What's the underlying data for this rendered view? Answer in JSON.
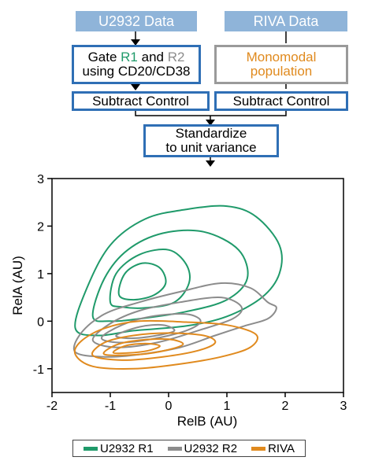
{
  "flow": {
    "u2932_source": "U2932 Data",
    "riva_source": "RIVA Data",
    "gate_prefix": "Gate ",
    "gate_r1": "R1",
    "gate_and": " and ",
    "gate_r2": "R2",
    "gate_line2": "using CD20/CD38",
    "monomodal_line1": "Monomodal",
    "monomodal_line2": "population",
    "subtract_left": "Subtract Control",
    "subtract_right": "Subtract Control",
    "standardize_line1": "Standardize",
    "standardize_line2": "to unit variance"
  },
  "colors": {
    "source_fill": "#8fb4d9",
    "box_border_blue": "#2f6fb5",
    "box_border_grey": "#9a9a9a",
    "u2932_r1": "#1f9a6a",
    "u2932_r2": "#8c8c8c",
    "riva": "#e08a1e"
  },
  "chart_data": {
    "type": "contour",
    "xlabel": "RelB (AU)",
    "ylabel": "RelA (AU)",
    "xlim": [
      -2,
      3
    ],
    "ylim": [
      -1.5,
      3
    ],
    "xticks": [
      "-2",
      "-1",
      "0",
      "1",
      "2",
      "3"
    ],
    "yticks": [
      "3",
      "2",
      "1",
      "0",
      "-1"
    ],
    "series": [
      {
        "name": "U2932 R1",
        "color": "#1f9a6a",
        "levels": [
          [
            [
              -1.6,
              -0.15
            ],
            [
              -1.4,
              0.7
            ],
            [
              -1.0,
              1.6
            ],
            [
              -0.4,
              2.15
            ],
            [
              0.3,
              2.35
            ],
            [
              1.0,
              2.42
            ],
            [
              1.5,
              2.2
            ],
            [
              1.9,
              1.6
            ],
            [
              1.9,
              1.0
            ],
            [
              1.6,
              0.5
            ],
            [
              1.0,
              0.1
            ],
            [
              0.3,
              -0.1
            ],
            [
              -0.6,
              -0.2
            ],
            [
              -1.2,
              -0.3
            ]
          ],
          [
            [
              -1.3,
              0.1
            ],
            [
              -1.1,
              0.9
            ],
            [
              -0.7,
              1.5
            ],
            [
              -0.1,
              1.85
            ],
            [
              0.6,
              1.88
            ],
            [
              1.2,
              1.5
            ],
            [
              1.35,
              0.9
            ],
            [
              1.0,
              0.45
            ],
            [
              0.3,
              0.2
            ],
            [
              -0.5,
              0.05
            ],
            [
              -1.0,
              0.0
            ]
          ],
          [
            [
              -1.0,
              0.4
            ],
            [
              -0.9,
              1.0
            ],
            [
              -0.5,
              1.4
            ],
            [
              0.0,
              1.5
            ],
            [
              0.3,
              1.2
            ],
            [
              0.35,
              0.8
            ],
            [
              0.1,
              0.4
            ],
            [
              -0.4,
              0.28
            ],
            [
              -0.8,
              0.3
            ]
          ],
          [
            [
              -0.85,
              0.55
            ],
            [
              -0.75,
              1.0
            ],
            [
              -0.45,
              1.22
            ],
            [
              -0.15,
              1.12
            ],
            [
              -0.05,
              0.8
            ],
            [
              -0.25,
              0.55
            ],
            [
              -0.6,
              0.45
            ]
          ]
        ]
      },
      {
        "name": "U2932 R2",
        "color": "#8c8c8c",
        "levels": [
          [
            [
              -1.6,
              -0.65
            ],
            [
              -1.5,
              -0.25
            ],
            [
              -1.1,
              0.15
            ],
            [
              -0.5,
              0.4
            ],
            [
              0.2,
              0.62
            ],
            [
              0.9,
              0.8
            ],
            [
              1.4,
              0.7
            ],
            [
              1.7,
              0.4
            ],
            [
              1.85,
              0.28
            ],
            [
              1.7,
              0.05
            ],
            [
              1.3,
              -0.1
            ],
            [
              0.8,
              -0.3
            ],
            [
              0.2,
              -0.55
            ],
            [
              -0.5,
              -0.7
            ],
            [
              -1.1,
              -0.75
            ]
          ],
          [
            [
              -1.3,
              -0.4
            ],
            [
              -1.0,
              -0.05
            ],
            [
              -0.5,
              0.22
            ],
            [
              0.2,
              0.4
            ],
            [
              0.9,
              0.5
            ],
            [
              1.25,
              0.3
            ],
            [
              1.1,
              0.05
            ],
            [
              0.5,
              -0.2
            ],
            [
              -0.2,
              -0.45
            ],
            [
              -0.9,
              -0.55
            ]
          ],
          [
            [
              -1.15,
              -0.35
            ],
            [
              -0.8,
              -0.08
            ],
            [
              -0.3,
              0.1
            ],
            [
              0.3,
              0.15
            ],
            [
              0.55,
              0.0
            ],
            [
              0.3,
              -0.2
            ],
            [
              -0.3,
              -0.38
            ],
            [
              -0.85,
              -0.45
            ]
          ],
          [
            [
              -0.9,
              -0.3
            ],
            [
              -0.5,
              -0.12
            ],
            [
              -0.1,
              -0.08
            ],
            [
              0.1,
              -0.2
            ],
            [
              -0.2,
              -0.3
            ],
            [
              -0.65,
              -0.36
            ]
          ]
        ]
      },
      {
        "name": "RIVA",
        "color": "#e08a1e",
        "levels": [
          [
            [
              -1.6,
              -0.7
            ],
            [
              -1.5,
              -0.42
            ],
            [
              -1.1,
              -0.15
            ],
            [
              -0.5,
              0.0
            ],
            [
              0.3,
              -0.02
            ],
            [
              1.0,
              -0.08
            ],
            [
              1.5,
              -0.28
            ],
            [
              1.4,
              -0.55
            ],
            [
              0.9,
              -0.75
            ],
            [
              0.2,
              -0.9
            ],
            [
              -0.6,
              -1.0
            ],
            [
              -1.3,
              -0.95
            ]
          ],
          [
            [
              -1.3,
              -0.72
            ],
            [
              -1.1,
              -0.45
            ],
            [
              -0.6,
              -0.3
            ],
            [
              0.0,
              -0.25
            ],
            [
              0.6,
              -0.3
            ],
            [
              0.8,
              -0.45
            ],
            [
              0.5,
              -0.62
            ],
            [
              -0.1,
              -0.75
            ],
            [
              -0.8,
              -0.82
            ]
          ],
          [
            [
              -1.1,
              -0.7
            ],
            [
              -0.9,
              -0.5
            ],
            [
              -0.5,
              -0.4
            ],
            [
              0.0,
              -0.38
            ],
            [
              0.25,
              -0.48
            ],
            [
              0.0,
              -0.6
            ],
            [
              -0.5,
              -0.7
            ]
          ],
          [
            [
              -0.95,
              -0.66
            ],
            [
              -0.75,
              -0.52
            ],
            [
              -0.4,
              -0.47
            ],
            [
              -0.15,
              -0.52
            ],
            [
              -0.35,
              -0.62
            ],
            [
              -0.7,
              -0.67
            ]
          ]
        ]
      }
    ]
  },
  "legend": {
    "items": [
      {
        "label": "U2932 R1",
        "color": "#1f9a6a"
      },
      {
        "label": "U2932 R2",
        "color": "#8c8c8c"
      },
      {
        "label": "RIVA",
        "color": "#e08a1e"
      }
    ]
  }
}
